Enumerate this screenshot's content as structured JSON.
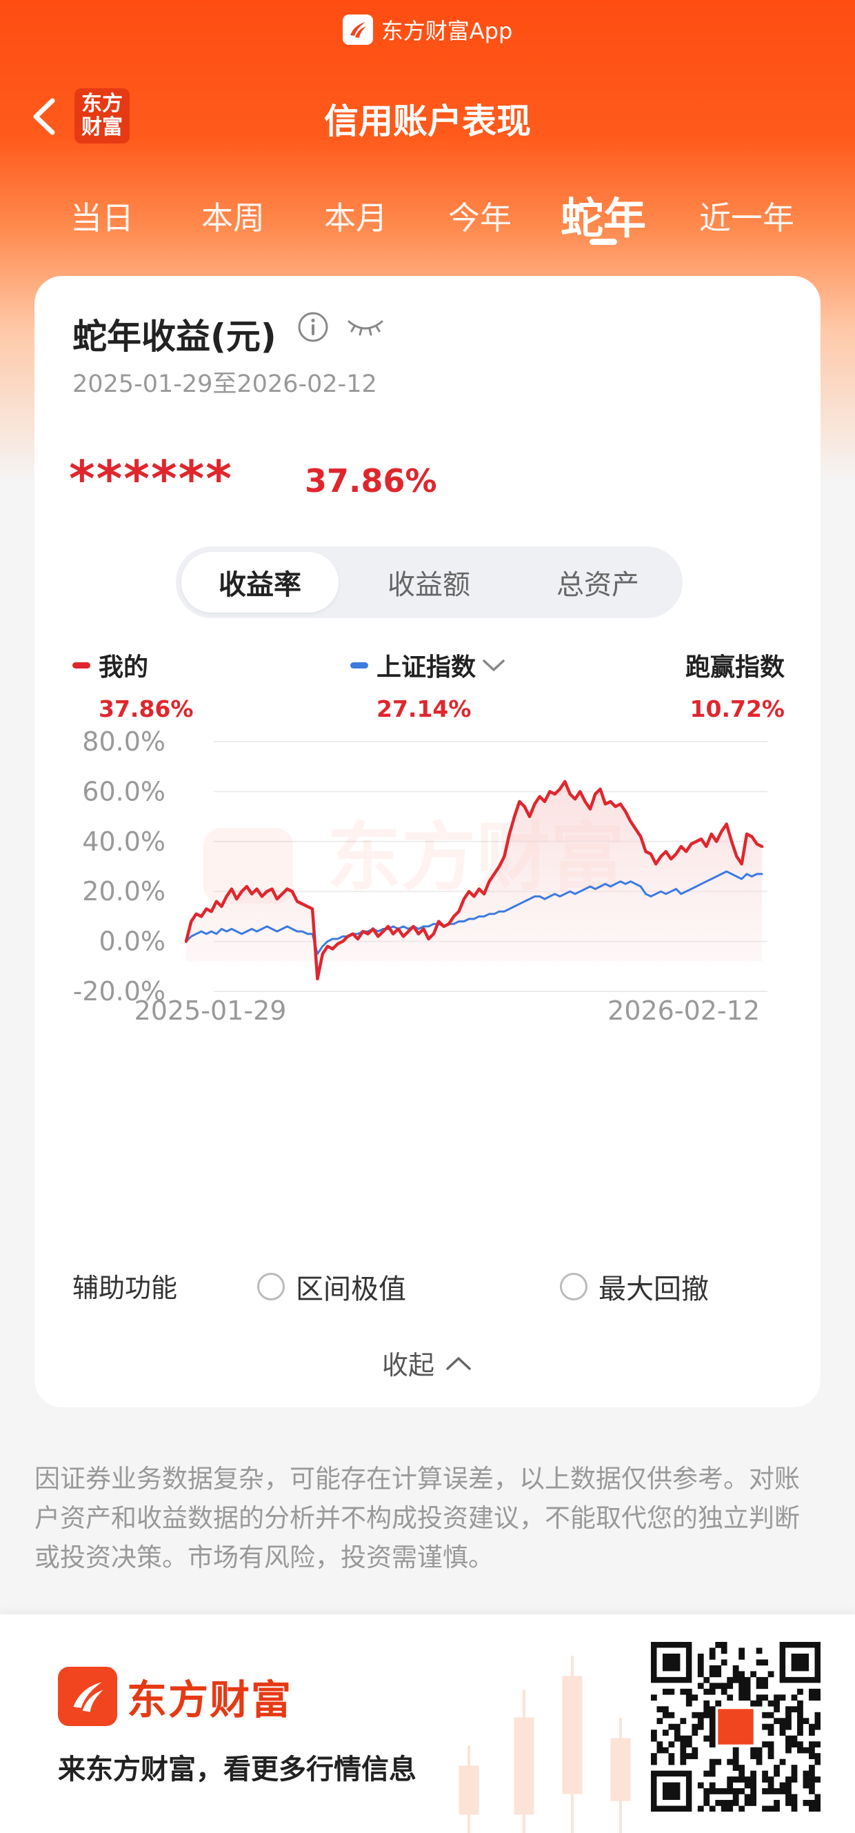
{
  "app_banner": {
    "text": "东方财富App"
  },
  "header": {
    "title": "信用账户表现",
    "logo_line1": "东方",
    "logo_line2": "财富"
  },
  "tabs": [
    "当日",
    "本周",
    "本月",
    "今年",
    "蛇年",
    "近一年"
  ],
  "active_tab": "蛇年",
  "card": {
    "title": "蛇年收益(元)",
    "date_range": "2025-01-29至2026-02-12",
    "masked_amount": "******",
    "return_rate": "37.86%",
    "segments": [
      "收益率",
      "收益额",
      "总资产"
    ],
    "active_segment": "收益率",
    "legend": [
      {
        "name": "我的",
        "value": "37.86%",
        "color": "#e0262d"
      },
      {
        "name": "上证指数",
        "value": "27.14%",
        "color": "#3c7be0"
      },
      {
        "name": "跑赢指数",
        "value": "10.72%"
      }
    ],
    "aux_label": "辅助功能",
    "aux_options": [
      "区间极值",
      "最大回撤"
    ],
    "collapse_label": "收起"
  },
  "chart_data": {
    "type": "line",
    "x_start": "2025-01-29",
    "x_end": "2026-02-12",
    "x_tick_labels": [
      "2025-01-29",
      "2026-02-12"
    ],
    "y_tick_labels": [
      "80.0%",
      "60.0%",
      "40.0%",
      "20.0%",
      "0.0%",
      "-20.0%"
    ],
    "ylim": [
      -20,
      80
    ],
    "watermark": "东方财富",
    "series": [
      {
        "name": "我的",
        "color": "#e0262d",
        "values": [
          0,
          8,
          11,
          10,
          13,
          12,
          16,
          14,
          18,
          21,
          17,
          20,
          22,
          19,
          21,
          18,
          20,
          21,
          17,
          19,
          21,
          20,
          16,
          15,
          14,
          13,
          -15,
          -5,
          -2,
          -3,
          -1,
          0,
          2,
          3,
          1,
          4,
          3,
          5,
          2,
          4,
          6,
          3,
          5,
          2,
          4,
          6,
          3,
          5,
          1,
          3,
          8,
          6,
          7,
          10,
          12,
          17,
          20,
          18,
          21,
          19,
          24,
          27,
          30,
          34,
          43,
          50,
          56,
          54,
          50,
          55,
          58,
          56,
          60,
          59,
          61,
          64,
          59,
          57,
          60,
          56,
          53,
          59,
          61,
          55,
          56,
          54,
          55,
          52,
          48,
          45,
          42,
          36,
          35,
          31,
          34,
          36,
          33,
          35,
          38,
          36,
          39,
          40,
          41,
          38,
          43,
          40,
          44,
          47,
          40,
          34,
          31,
          43,
          42,
          39,
          38
        ]
      },
      {
        "name": "上证指数",
        "color": "#3c7be0",
        "values": [
          0,
          2,
          3,
          4,
          3,
          4,
          3,
          5,
          4,
          5,
          4,
          3,
          4,
          5,
          4,
          5,
          6,
          5,
          4,
          5,
          6,
          5,
          4,
          4,
          3,
          3,
          -5,
          -2,
          0,
          1,
          1,
          2,
          2,
          3,
          3,
          4,
          4,
          5,
          4,
          5,
          5,
          6,
          5,
          6,
          5,
          6,
          5,
          6,
          6,
          7,
          7,
          6,
          7,
          7,
          8,
          8,
          9,
          9,
          10,
          10,
          11,
          11,
          12,
          12,
          13,
          14,
          15,
          16,
          17,
          18,
          18,
          17,
          18,
          19,
          18,
          19,
          20,
          19,
          20,
          21,
          22,
          21,
          22,
          23,
          22,
          23,
          24,
          23,
          24,
          23,
          22,
          19,
          18,
          19,
          20,
          19,
          20,
          21,
          19,
          20,
          21,
          22,
          23,
          24,
          25,
          26,
          27,
          28,
          27,
          26,
          25,
          27,
          26,
          27,
          27
        ]
      }
    ]
  },
  "disclaimer": "因证券业务数据复杂，可能存在计算误差，以上数据仅供参考。对账户资产和收益数据的分析并不构成投资建议，不能取代您的独立判断或投资决策。市场有风险，投资需谨慎。",
  "footer": {
    "brand": "东方财富",
    "slogan": "来东方财富，看更多行情信息"
  }
}
